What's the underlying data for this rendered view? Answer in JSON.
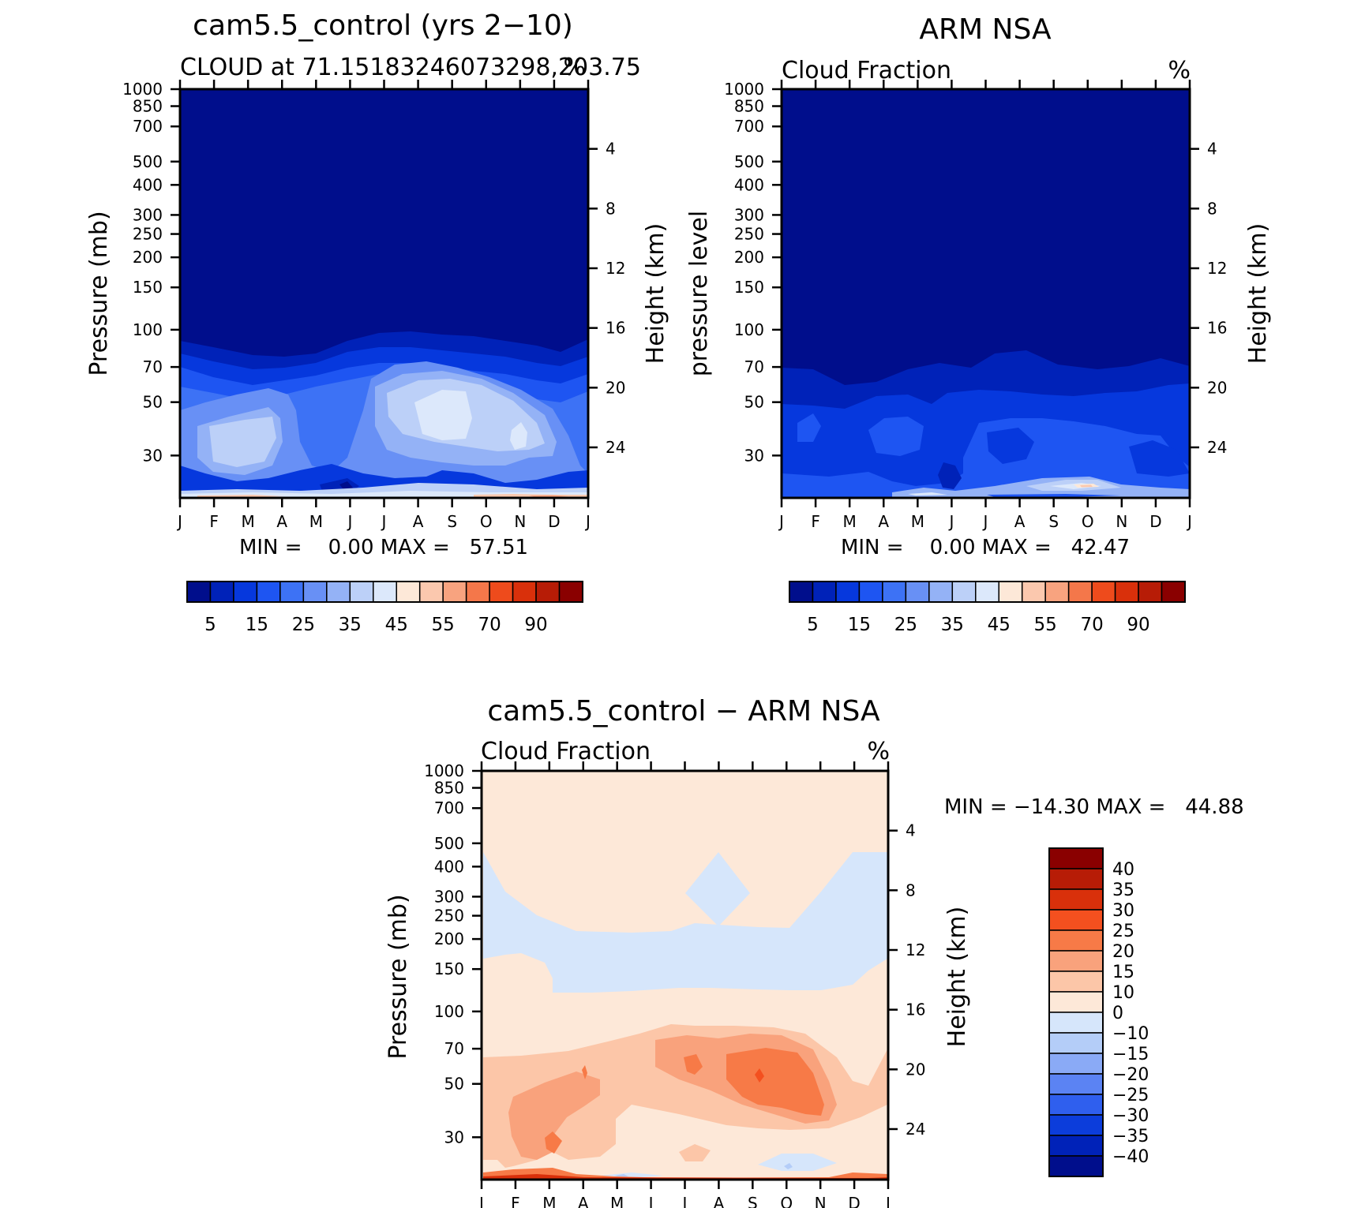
{
  "chart_data": [
    {
      "type": "heatmap",
      "title": "cam5.5_control (yrs 2−10)",
      "subtitle_left": "CLOUD at 71.15183246073298,203.75",
      "units": "%",
      "ylabel": "Pressure (mb)",
      "ylabel_right": "Height (km)",
      "x_ticks": [
        "J",
        "F",
        "M",
        "A",
        "M",
        "J",
        "J",
        "A",
        "S",
        "O",
        "N",
        "D",
        "J"
      ],
      "y_ticks": [
        30,
        50,
        70,
        100,
        150,
        200,
        250,
        300,
        400,
        500,
        700,
        850,
        1000
      ],
      "y_right_ticks": [
        24,
        20,
        16,
        12,
        8,
        4
      ],
      "min_max_text": "MIN =    0.00 MAX =   57.51",
      "min": 0.0,
      "max": 57.51,
      "colorbar_labels": [
        "5",
        "15",
        "25",
        "35",
        "45",
        "55",
        "70",
        "90"
      ],
      "colorbar_levels": [
        0,
        5,
        10,
        15,
        20,
        25,
        30,
        35,
        40,
        45,
        50,
        55,
        60,
        70,
        80,
        90,
        100
      ],
      "ylim": [
        1000,
        20
      ]
    },
    {
      "type": "heatmap",
      "title": "ARM NSA",
      "subtitle_left": "Cloud Fraction",
      "units": "%",
      "ylabel": "pressure level",
      "ylabel_right": "Height (km)",
      "x_ticks": [
        "J",
        "F",
        "M",
        "A",
        "M",
        "J",
        "J",
        "A",
        "S",
        "O",
        "N",
        "D",
        "J"
      ],
      "y_ticks": [
        30,
        50,
        70,
        100,
        150,
        200,
        250,
        300,
        400,
        500,
        700,
        850,
        1000
      ],
      "y_right_ticks": [
        24,
        20,
        16,
        12,
        8,
        4
      ],
      "min_max_text": "MIN =    0.00 MAX =   42.47",
      "min": 0.0,
      "max": 42.47,
      "colorbar_labels": [
        "5",
        "15",
        "25",
        "35",
        "45",
        "55",
        "70",
        "90"
      ],
      "colorbar_levels": [
        0,
        5,
        10,
        15,
        20,
        25,
        30,
        35,
        40,
        45,
        50,
        55,
        60,
        70,
        80,
        90,
        100
      ],
      "ylim": [
        1000,
        20
      ]
    },
    {
      "type": "heatmap",
      "title": "cam5.5_control − ARM NSA",
      "subtitle_left": "Cloud Fraction",
      "units": "%",
      "ylabel": "Pressure (mb)",
      "ylabel_right": "Height (km)",
      "x_ticks": [
        "J",
        "F",
        "M",
        "A",
        "M",
        "J",
        "J",
        "A",
        "S",
        "O",
        "N",
        "D",
        "J"
      ],
      "y_ticks": [
        30,
        50,
        70,
        100,
        150,
        200,
        250,
        300,
        400,
        500,
        700,
        850,
        1000
      ],
      "y_right_ticks": [
        24,
        20,
        16,
        12,
        8,
        4
      ],
      "min_max_text": "MIN = −14.30 MAX =   44.88",
      "min": -14.3,
      "max": 44.88,
      "colorbar_labels": [
        "40",
        "35",
        "30",
        "25",
        "20",
        "15",
        "10",
        "0",
        "−10",
        "−15",
        "−20",
        "−25",
        "−30",
        "−35",
        "−40"
      ],
      "ylim": [
        1000,
        20
      ]
    }
  ],
  "colors": {
    "seq": [
      "#000e8c",
      "#0022b8",
      "#0638dd",
      "#1e55f2",
      "#3d72f5",
      "#6890f5",
      "#94b2f6",
      "#bcd0f8",
      "#dce8fb",
      "#fde8d8",
      "#fbc8ae",
      "#f8a37f",
      "#f4774a",
      "#ee4b1c",
      "#d9300b",
      "#b71c06",
      "#8a0000"
    ],
    "diff": [
      "#8a0000",
      "#b71c06",
      "#d9300b",
      "#f4501f",
      "#f77a47",
      "#f9a27c",
      "#fcc6a8",
      "#fde8d8",
      "#d6e6fb",
      "#b4cdf8",
      "#8aaaf6",
      "#5b83f3",
      "#2f5fee",
      "#0c3ddb",
      "#0022b8",
      "#000e8c"
    ]
  }
}
